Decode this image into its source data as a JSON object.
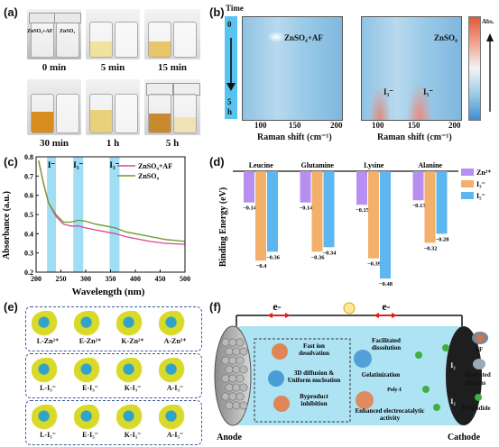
{
  "panels": {
    "a": {
      "label": "(a)",
      "vial_labels": [
        "ZnSO₄+AF",
        "ZnSO₄"
      ],
      "times": [
        "0 min",
        "5 min",
        "15 min",
        "30 min",
        "1 h",
        "5 h"
      ]
    },
    "b": {
      "label": "(b)",
      "time_label": "Time",
      "time_start": "0",
      "time_end_num": "5",
      "time_end_unit": "h",
      "map1_title": "ZnSO₄+AF",
      "map2_title": "ZnSO₄",
      "xlabel": "Raman shift (cm⁻¹)",
      "xticks": [
        "100",
        "150",
        "200"
      ],
      "colorbar_label": "Abs.",
      "peak_labels": [
        "I₃⁻",
        "I₅⁻"
      ]
    },
    "c": {
      "label": "(c)",
      "ylabel": "Absorbance (a.u.)",
      "xlabel": "Wavelength (nm)",
      "bands": [
        "I⁻",
        "I₃⁻",
        "I₃⁻"
      ],
      "legend": [
        "ZnSO₄+AF",
        "ZnSO₄"
      ]
    },
    "d": {
      "label": "(d)",
      "ylabel": "Binding Energy (eV)",
      "legend": [
        "Zn²⁺",
        "I₃⁻",
        "I₅⁻"
      ]
    },
    "e": {
      "label": "(e)",
      "row1": [
        "L-Zn²⁺",
        "E-Zn²⁺",
        "K-Zn²⁺",
        "A-Zn²⁺"
      ],
      "row2": [
        "L-I₃⁻",
        "E-I₃⁻",
        "K-I₃⁻",
        "A-I₃⁻"
      ],
      "row3": [
        "L-I₅⁻",
        "E-I₅⁻",
        "K-I₅⁻",
        "A-I₅⁻"
      ]
    },
    "f": {
      "label": "(f)",
      "electron_left": "e-",
      "electron_right": "e-",
      "anode": "Anode",
      "cathode": "Cathode",
      "texts": {
        "fast_ion": "Fast ion",
        "desolvation": "desolvation",
        "diffusion1": "3D diffusion &",
        "diffusion2": "Uniform nucleation",
        "byproduct1": "Byproduct",
        "byproduct2": "inhibition",
        "facilitated1": "Facilitated",
        "facilitated2": "dissolution",
        "gelatinization": "Gelatinization",
        "poly": "Poly-I",
        "enhanced1": "Enhanced electrocatalytic",
        "enhanced2": "activity",
        "i2_a": "I₂",
        "i2_b": "I₂",
        "af": "AF",
        "hydrated1": "Hydrated",
        "hydrated2": "Zn ions",
        "polyiodide": "Polyiodide"
      }
    }
  },
  "chart_data": [
    {
      "type": "line",
      "panel": "c",
      "xlabel": "Wavelength (nm)",
      "ylabel": "Absorbance (a.u.)",
      "xlim": [
        200,
        500
      ],
      "ylim": [
        0.2,
        0.8
      ],
      "xticks": [
        200,
        250,
        300,
        350,
        400,
        450,
        500
      ],
      "yticks": [
        0.2,
        0.3,
        0.4,
        0.5,
        0.6,
        0.7,
        0.8
      ],
      "legend_position": "top-right",
      "series": [
        {
          "name": "ZnSO₄+AF",
          "color": "#d9488f",
          "x": [
            205,
            215,
            225,
            240,
            255,
            270,
            285,
            300,
            320,
            340,
            360,
            380,
            400,
            430,
            460,
            500
          ],
          "y": [
            0.78,
            0.66,
            0.56,
            0.49,
            0.45,
            0.44,
            0.44,
            0.43,
            0.42,
            0.41,
            0.4,
            0.385,
            0.375,
            0.36,
            0.35,
            0.345
          ]
        },
        {
          "name": "ZnSO₄",
          "color": "#6a9a2a",
          "x": [
            205,
            215,
            225,
            240,
            255,
            270,
            285,
            300,
            320,
            340,
            360,
            380,
            400,
            430,
            460,
            500
          ],
          "y": [
            0.78,
            0.66,
            0.56,
            0.5,
            0.46,
            0.46,
            0.47,
            0.465,
            0.45,
            0.44,
            0.43,
            0.41,
            0.4,
            0.385,
            0.37,
            0.36
          ]
        }
      ]
    },
    {
      "type": "bar",
      "panel": "d",
      "categories": [
        "Leucine",
        "Glutamine",
        "Lysine",
        "Alanine"
      ],
      "ylabel": "Binding Energy (eV)",
      "ylim": [
        -0.5,
        0
      ],
      "legend_position": "top-right",
      "series": [
        {
          "name": "Zn²⁺",
          "color": "#b88ff0",
          "values": [
            -0.14,
            -0.14,
            -0.15,
            -0.13
          ]
        },
        {
          "name": "I₃⁻",
          "color": "#f2b06a",
          "values": [
            -0.4,
            -0.36,
            -0.39,
            -0.32
          ]
        },
        {
          "name": "I₅⁻",
          "color": "#5eb6ef",
          "values": [
            -0.36,
            -0.34,
            -0.48,
            -0.28
          ]
        }
      ]
    }
  ]
}
